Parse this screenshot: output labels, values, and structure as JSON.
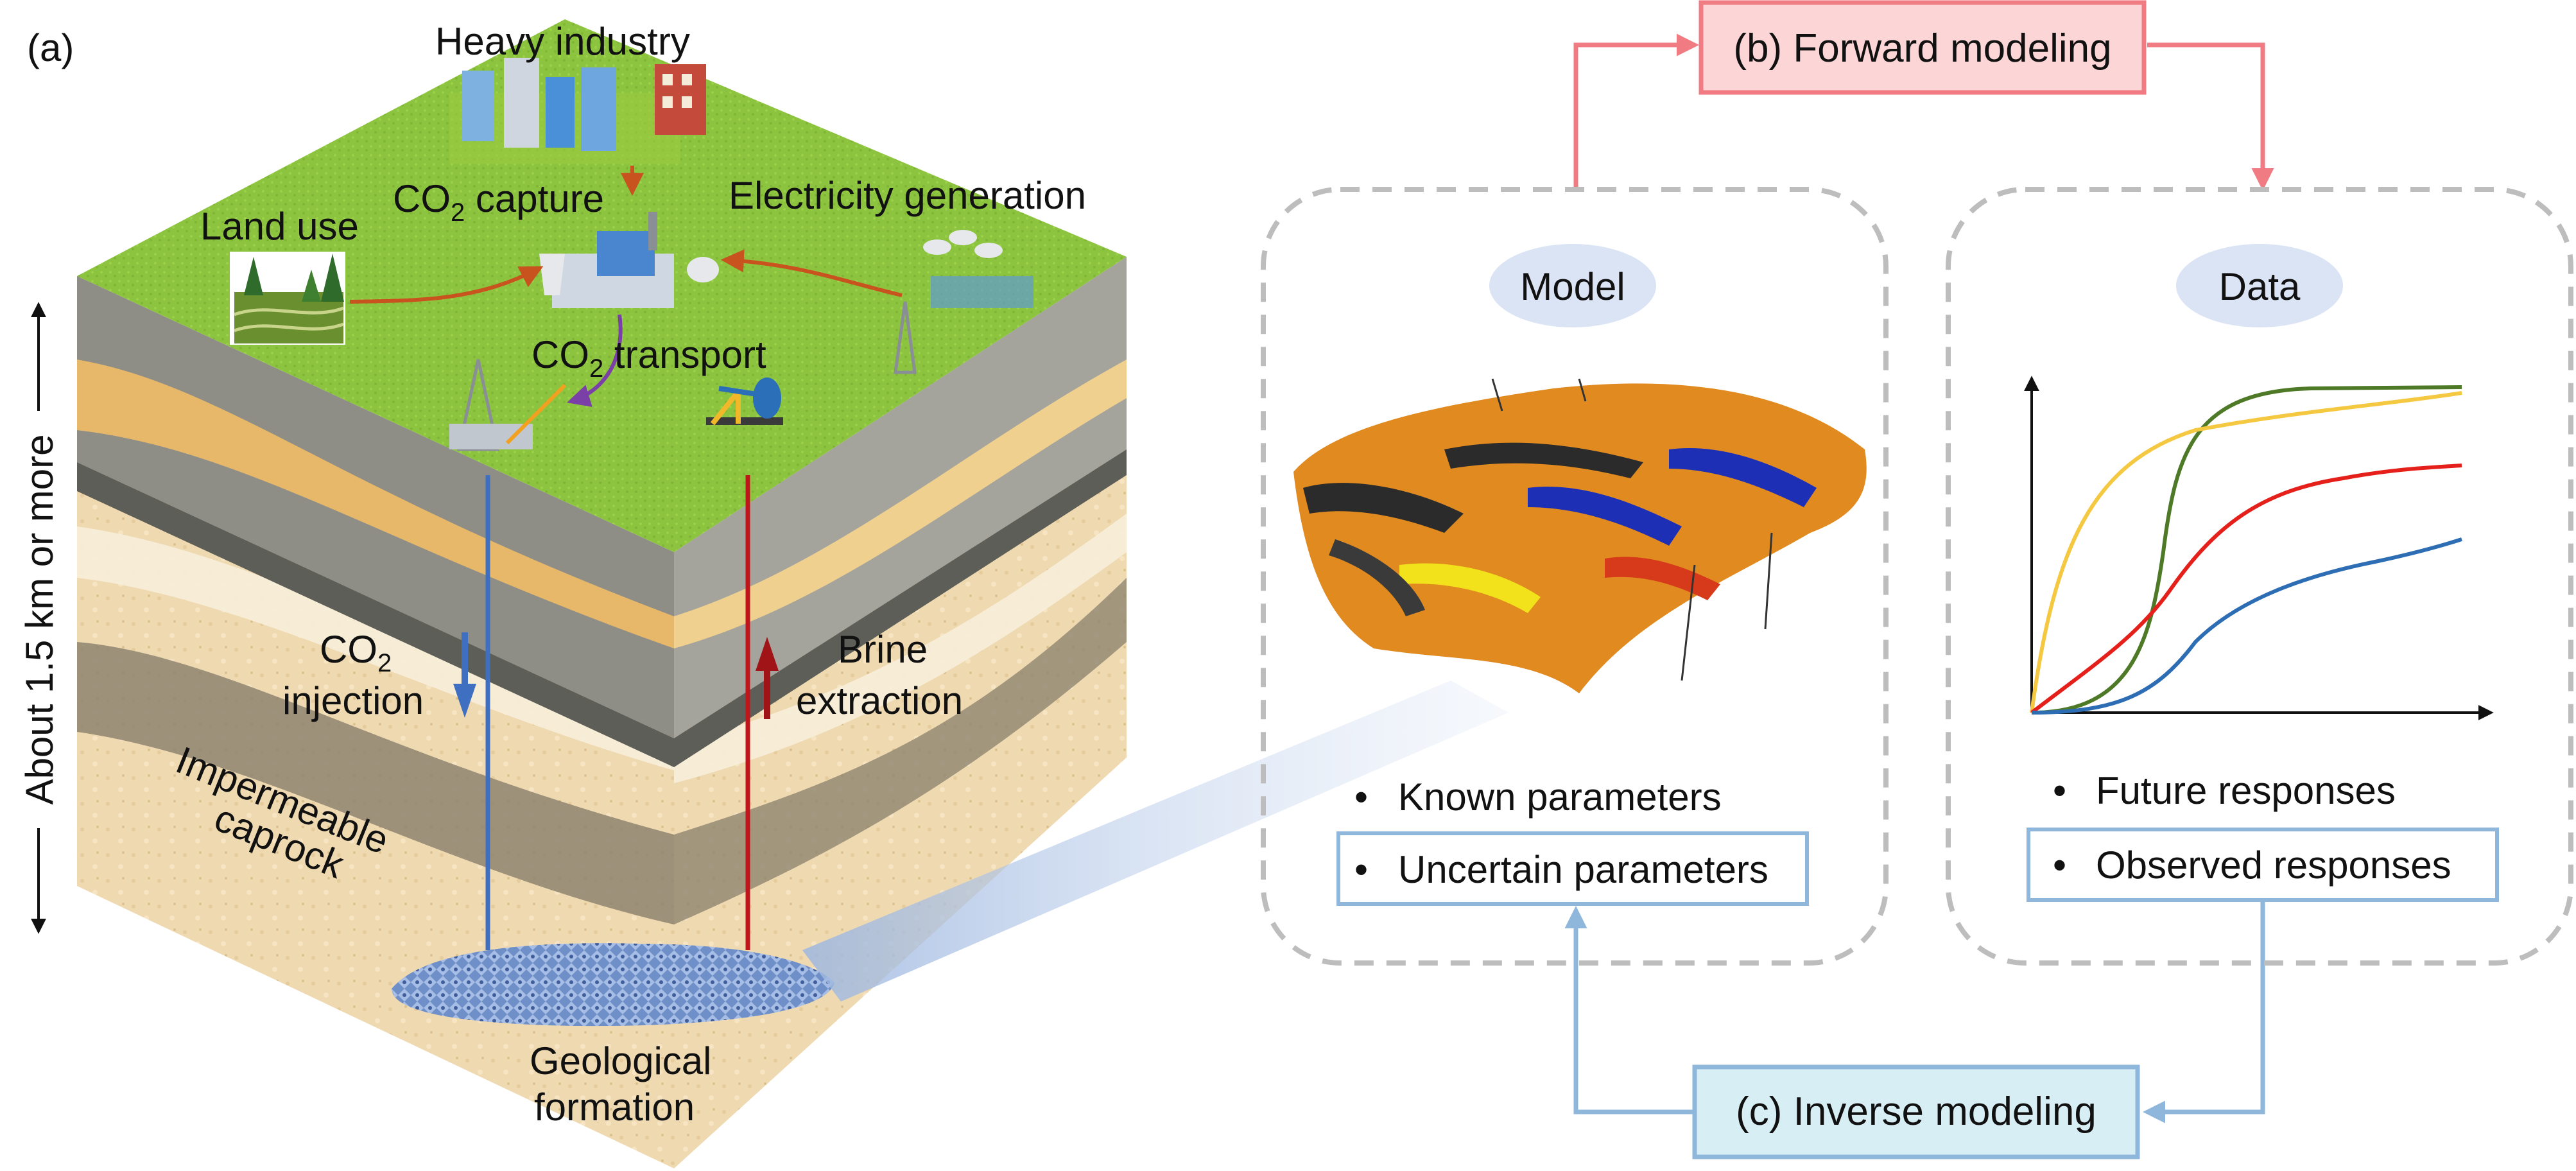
{
  "panel_a": {
    "tag": "(a)",
    "heavy_industry": "Heavy industry",
    "land_use": "Land use",
    "electricity_generation": "Electricity generation",
    "co2_capture": {
      "pre": "CO",
      "sub": "2",
      "post": " capture"
    },
    "co2_transport": {
      "pre": "CO",
      "sub": "2",
      "post": " transport"
    },
    "co2_injection": {
      "pre": "CO",
      "sub": "2",
      "line2": "injection"
    },
    "brine_extraction": {
      "line1": "Brine",
      "line2": "extraction"
    },
    "caprock": {
      "line1": "Impermeable",
      "line2": "caprock"
    },
    "geological_formation": {
      "line1": "Geological",
      "line2": "formation"
    },
    "depth_label": "About 1.5 km or more"
  },
  "panel_b": {
    "label": "(b) Forward modeling"
  },
  "panel_c": {
    "label": "(c) Inverse modeling"
  },
  "model_box": {
    "title": "Model",
    "known": "Known parameters",
    "uncertain": "Uncertain parameters"
  },
  "data_box": {
    "title": "Data",
    "future": "Future responses",
    "observed": "Observed responses"
  },
  "colors": {
    "forward": "#f07b83",
    "forward_fill": "#fcd6d6",
    "inverse": "#8fb7dc",
    "inverse_fill": "#d7eef5",
    "dashed": "#bdbdbd",
    "oval": "#dbe4f5",
    "grass": "#8dc43f",
    "sand": "#efd9b0",
    "injection": "#3f6fc0",
    "brine": "#c0161b",
    "arrow_orange": "#c9531e",
    "arrow_purple": "#7b3fa8",
    "curve_green": "#4e7a27",
    "curve_yellow": "#f5c842",
    "curve_red": "#e5201b",
    "curve_blue": "#2d6db3"
  }
}
